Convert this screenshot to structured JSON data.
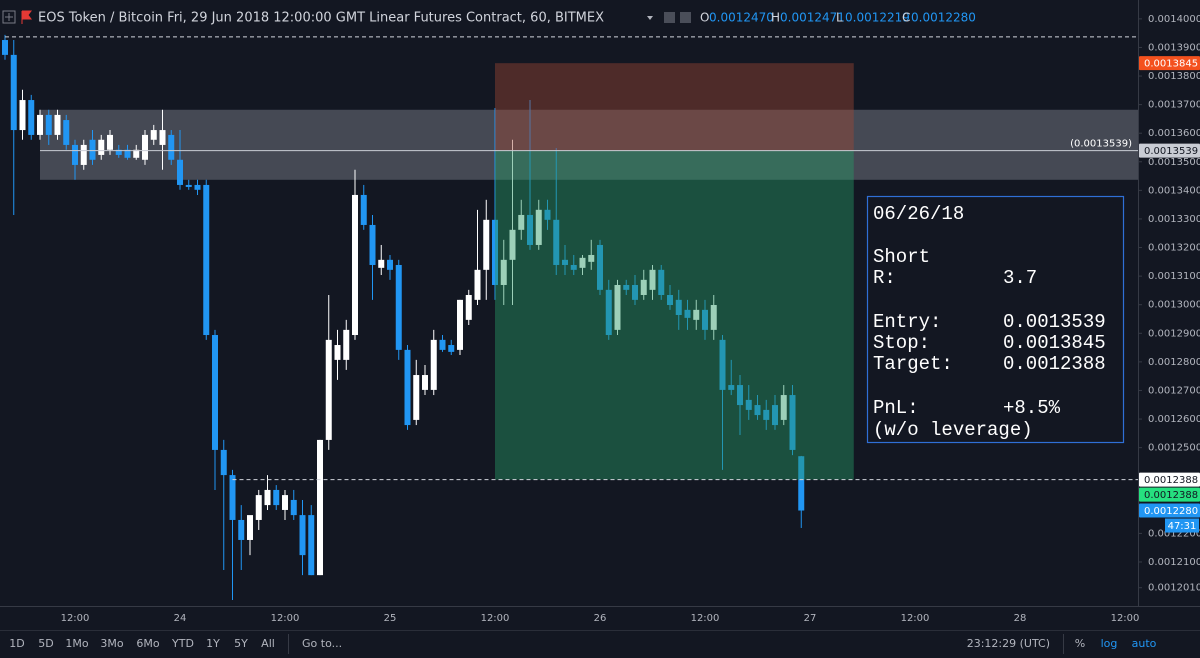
{
  "header": {
    "title": "EOS Token / Bitcoin Fri, 29 Jun 2018 12:00:00 GMT Linear Futures Contract, 60, BITMEX",
    "ohlc": [
      {
        "label": "O",
        "value": "0.0012470"
      },
      {
        "label": "H",
        "value": "0.0012471"
      },
      {
        "label": "L",
        "value": "0.0012219"
      },
      {
        "label": "C",
        "value": "0.0012280"
      }
    ]
  },
  "chart_data": {
    "type": "candlestick",
    "up_color": "#ffffff",
    "down_color": "#2196f3",
    "ylim": [
      0.0011946,
      0.0014066
    ],
    "yticks": [
      {
        "value": 0.0014,
        "label": "0.0014000"
      },
      {
        "value": 0.00139,
        "label": "0.0013900"
      },
      {
        "value": 0.00138,
        "label": "0.0013800"
      },
      {
        "value": 0.00137,
        "label": "0.0013700"
      },
      {
        "value": 0.00136,
        "label": "0.0013600"
      },
      {
        "value": 0.00135,
        "label": "0.0013500"
      },
      {
        "value": 0.00134,
        "label": "0.0013400"
      },
      {
        "value": 0.00133,
        "label": "0.0013300"
      },
      {
        "value": 0.00132,
        "label": "0.0013200"
      },
      {
        "value": 0.00131,
        "label": "0.0013100"
      },
      {
        "value": 0.0013,
        "label": "0.0013000"
      },
      {
        "value": 0.00129,
        "label": "0.0012900"
      },
      {
        "value": 0.00128,
        "label": "0.0012800"
      },
      {
        "value": 0.00127,
        "label": "0.0012700"
      },
      {
        "value": 0.00126,
        "label": "0.0012600"
      },
      {
        "value": 0.00125,
        "label": "0.0012500"
      },
      {
        "value": 0.00122,
        "label": "0.0012200"
      },
      {
        "value": 0.00121,
        "label": "0.0012100"
      },
      {
        "value": 0.001201,
        "label": "0.0012010"
      }
    ],
    "x_labels": [
      "12:00",
      "24",
      "12:00",
      "25",
      "12:00",
      "26",
      "12:00",
      "27",
      "12:00",
      "28",
      "12:00"
    ],
    "open": [
      0.0013926,
      0.0013874,
      0.0013611,
      0.0013716,
      0.0013594,
      0.0013664,
      0.0013594,
      0.0013646,
      0.0013559,
      0.0013489,
      0.0013577,
      0.0013524,
      0.0013542,
      0.0013542,
      0.0013542,
      0.0013514,
      0.0013507,
      0.0013577,
      0.0013559,
      0.0013594,
      0.0013507,
      0.0013419,
      0.0013419,
      0.0013419,
      0.0012894,
      0.0012492,
      0.0012404,
      0.0012247,
      0.0012177,
      0.0012247,
      0.0012299,
      0.0012352,
      0.0012282,
      0.0012317,
      0.0012264,
      0.0012264,
      0.0012054,
      0.0012527,
      0.0012807,
      0.0012807,
      0.0012894,
      0.0013384,
      0.0013279,
      0.0013129,
      0.0013157,
      0.0013139,
      0.0012842,
      0.0012597,
      0.0012702,
      0.0012702,
      0.0012877,
      0.0012859,
      0.0012842,
      0.0012947,
      0.0013017,
      0.0013122,
      0.0013297,
      0.0013069,
      0.0013157,
      0.0013262,
      0.0013314,
      0.0013209,
      0.0013332,
      0.0013297,
      0.0013157,
      0.0013139,
      0.0013129,
      0.001315,
      0.0013209,
      0.0013052,
      0.0012912,
      0.0013069,
      0.0013069,
      0.0013034,
      0.0013052,
      0.0013122,
      0.0013034,
      0.0013017,
      0.0012982,
      0.0012947,
      0.0012982,
      0.0012912,
      0.0012877,
      0.0012719,
      0.0012719,
      0.0012667,
      0.0012649,
      0.0012632,
      0.0012649,
      0.0012597,
      0.0012684,
      0.001247
    ],
    "high": [
      0.0013944,
      0.0013926,
      0.0013752,
      0.0013734,
      0.0013682,
      0.0013682,
      0.0013682,
      0.0013664,
      0.0013577,
      0.0013577,
      0.0013611,
      0.0013594,
      0.0013611,
      0.0013559,
      0.0013559,
      0.0013559,
      0.0013611,
      0.0013629,
      0.0013682,
      0.0013611,
      0.0013611,
      0.0013437,
      0.0013437,
      0.0013437,
      0.0012912,
      0.0012527,
      0.0012422,
      0.0012299,
      0.0012247,
      0.0012352,
      0.0012404,
      0.0012369,
      0.0012352,
      0.0012352,
      0.0012317,
      0.0012299,
      0.0012527,
      0.0013034,
      0.0012912,
      0.0012947,
      0.0013472,
      0.0013419,
      0.0013314,
      0.0013209,
      0.0013174,
      0.0013157,
      0.0012859,
      0.0012807,
      0.0012789,
      0.0012912,
      0.0012894,
      0.0012877,
      0.0013017,
      0.0013052,
      0.0013332,
      0.0013367,
      0.0013688,
      0.0013227,
      0.0013577,
      0.0013367,
      0.0013716,
      0.0013367,
      0.0013367,
      0.0013548,
      0.0013209,
      0.0013174,
      0.0013174,
      0.0013227,
      0.0013227,
      0.0013087,
      0.0013087,
      0.0013087,
      0.0013104,
      0.0013122,
      0.0013139,
      0.0013139,
      0.0013069,
      0.0013052,
      0.0013017,
      0.0013017,
      0.0013017,
      0.0013034,
      0.0012894,
      0.0012807,
      0.0012754,
      0.0012719,
      0.0012684,
      0.0012667,
      0.0012684,
      0.0012719,
      0.0012719,
      0.0012471
    ],
    "low": [
      0.0013857,
      0.0013314,
      0.0013577,
      0.0013577,
      0.0013577,
      0.0013559,
      0.0013577,
      0.0013542,
      0.0013437,
      0.0013472,
      0.0013489,
      0.0013507,
      0.0013524,
      0.0013514,
      0.0013507,
      0.0013507,
      0.0013489,
      0.0013559,
      0.0013472,
      0.0013489,
      0.0013402,
      0.0013402,
      0.0013384,
      0.0012877,
      0.0012352,
      0.0012072,
      0.0011967,
      0.0012072,
      0.0012124,
      0.0012212,
      0.0012282,
      0.0012282,
      0.0012247,
      0.0012247,
      0.0012054,
      0.0012054,
      0.0012054,
      0.0012492,
      0.0012737,
      0.0012772,
      0.0012877,
      0.0013262,
      0.0013017,
      0.0013104,
      0.0013087,
      0.0012807,
      0.0012562,
      0.0012579,
      0.0012684,
      0.0012684,
      0.0012835,
      0.0012824,
      0.0012824,
      0.0012929,
      0.0012999,
      0.0013017,
      0.0013017,
      0.0012999,
      0.0012999,
      0.0013227,
      0.0013192,
      0.0013192,
      0.0013262,
      0.0013104,
      0.0013104,
      0.0013104,
      0.0013104,
      0.0013122,
      0.0013034,
      0.0012877,
      0.0012894,
      0.0013034,
      0.0012999,
      0.0013017,
      0.0013017,
      0.0013017,
      0.0012982,
      0.0012912,
      0.0012912,
      0.0012912,
      0.0012877,
      0.0012877,
      0.0012422,
      0.0012684,
      0.0012544,
      0.0012597,
      0.0012597,
      0.0012562,
      0.0012562,
      0.0012579,
      0.0012474,
      0.0012219
    ],
    "close": [
      0.0013874,
      0.0013611,
      0.0013716,
      0.0013594,
      0.0013664,
      0.0013594,
      0.0013664,
      0.0013559,
      0.0013489,
      0.0013559,
      0.0013507,
      0.0013577,
      0.0013594,
      0.0013524,
      0.0013514,
      0.0013542,
      0.0013594,
      0.0013611,
      0.0013611,
      0.0013507,
      0.0013419,
      0.0013412,
      0.0013402,
      0.0012894,
      0.0012492,
      0.0012404,
      0.0012247,
      0.0012177,
      0.0012264,
      0.0012334,
      0.0012352,
      0.0012299,
      0.0012334,
      0.0012264,
      0.0012124,
      0.0012054,
      0.0012527,
      0.0012877,
      0.0012859,
      0.0012912,
      0.0013384,
      0.0013279,
      0.0013139,
      0.0013157,
      0.0013122,
      0.0012842,
      0.0012579,
      0.0012754,
      0.0012754,
      0.0012877,
      0.0012842,
      0.0012835,
      0.0013017,
      0.0013034,
      0.0013122,
      0.0013297,
      0.0013069,
      0.0013157,
      0.0013262,
      0.0013314,
      0.0013209,
      0.0013332,
      0.0013297,
      0.0013139,
      0.0013139,
      0.0013122,
      0.0013164,
      0.0013174,
      0.0013052,
      0.0012894,
      0.0013069,
      0.0013052,
      0.0013017,
      0.0013087,
      0.0013122,
      0.0013034,
      0.0012999,
      0.0012964,
      0.0012954,
      0.0012982,
      0.0012912,
      0.0012999,
      0.0012702,
      0.0012702,
      0.0012649,
      0.0012632,
      0.0012614,
      0.0012597,
      0.0012579,
      0.0012684,
      0.0012492,
      0.001228
    ],
    "zone": {
      "top": 0.0013682,
      "bottom": 0.0013437,
      "start": 4
    },
    "hline": {
      "value": 0.0013539,
      "label": "(0.0013539)",
      "start": 4
    },
    "dashed_lines": [
      {
        "value": 0.0013937,
        "start": 0
      },
      {
        "value": 0.0012388,
        "start": 26
      }
    ],
    "position": {
      "start": 56,
      "end": 97,
      "entry": 0.0013539,
      "stop": 0.0013845,
      "target": 0.0012388
    },
    "price_tags": [
      {
        "value": 0.0013845,
        "label": "0.0013845",
        "color": "#f4511e",
        "text_color": "#ffffff"
      },
      {
        "value": 0.0013539,
        "label": "0.0013539",
        "color": "#c9ccd4",
        "text_color": "#131722"
      },
      {
        "value": 0.0012388,
        "label": "0.0012388",
        "color": "#ffffff",
        "text_color": "#131722"
      },
      {
        "value": 0.0012388,
        "label": "0.0012388",
        "color": "#26e07f",
        "text_color": "#131722"
      },
      {
        "value": 0.001228,
        "label": "0.0012280",
        "color": "#2196f3",
        "text_color": "#ffffff"
      }
    ],
    "countdown": "47:31"
  },
  "info_box": {
    "date": "06/26/18",
    "side": "Short",
    "r_label": "R:",
    "r_value": "3.7",
    "entry_label": "Entry:",
    "stop_label": "Stop:",
    "target_label": "Target:",
    "pnl_label": "PnL:",
    "pnl_value": "+8.5%",
    "note": "(w/o leverage)"
  },
  "toolbar": {
    "ranges": [
      "1D",
      "5D",
      "1Mo",
      "3Mo",
      "6Mo",
      "YTD",
      "1Y",
      "5Y",
      "All"
    ],
    "goto": "Go to...",
    "clock": "23:12:29 (UTC)",
    "percent": "%",
    "log": "log",
    "auto": "auto"
  }
}
